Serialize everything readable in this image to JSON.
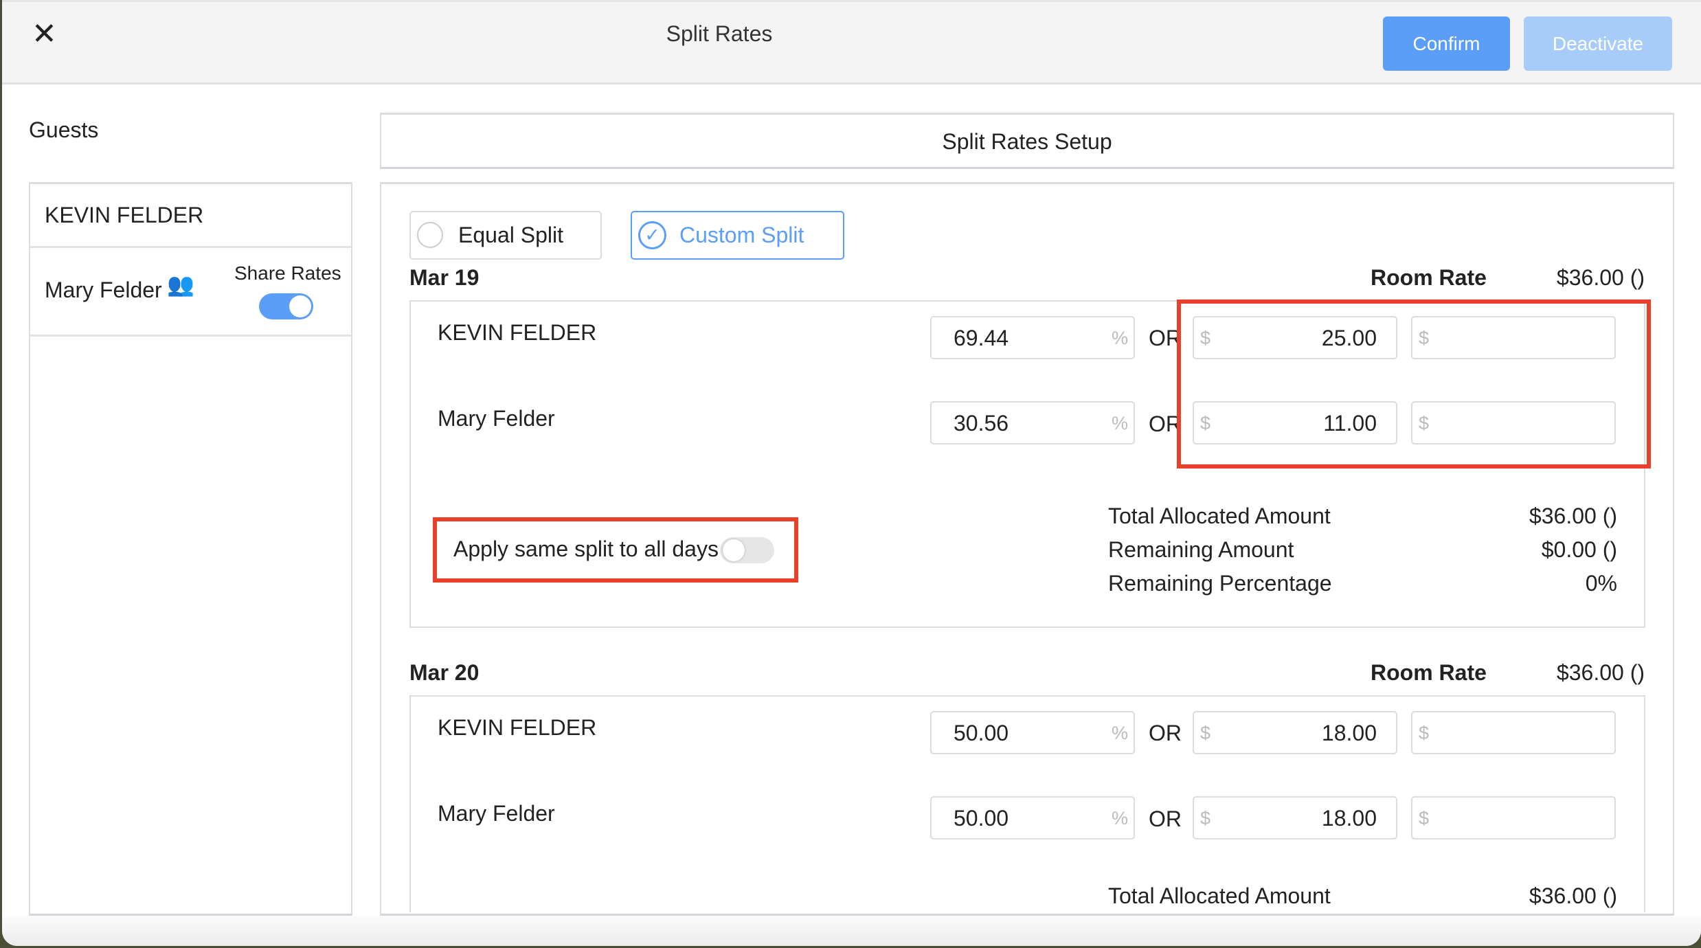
{
  "header": {
    "title": "Split Rates",
    "close_icon": "close-icon",
    "confirm_label": "Confirm",
    "deactivate_label": "Deactivate",
    "accent": "#5b9ef8",
    "disabled_accent": "#a8ccf9"
  },
  "guests": {
    "title": "Guests",
    "items": [
      {
        "name": "KEVIN FELDER"
      },
      {
        "name": "Mary Felder",
        "icon": "users-icon",
        "share_label": "Share Rates",
        "share_on": true
      }
    ]
  },
  "setup": {
    "title": "Split Rates Setup",
    "modes": [
      {
        "label": "Equal Split",
        "selected": false
      },
      {
        "label": "Custom Split",
        "selected": true
      }
    ],
    "room_rate_label": "Room Rate",
    "or_label": "OR",
    "pct_unit": "%",
    "currency": "$",
    "days": [
      {
        "date": "Mar 19",
        "room_rate": "$36.00 ()",
        "rows": [
          {
            "name": "KEVIN FELDER",
            "pct": "69.44",
            "amount": "25.00"
          },
          {
            "name": "Mary Felder",
            "pct": "30.56",
            "amount": "11.00"
          }
        ],
        "apply_label": "Apply same split to all days",
        "apply_on": false,
        "totals": [
          {
            "label": "Total Allocated Amount",
            "value": "$36.00 ()"
          },
          {
            "label": "Remaining Amount",
            "value": "$0.00 ()"
          },
          {
            "label": "Remaining Percentage",
            "value": "0%"
          }
        ]
      },
      {
        "date": "Mar 20",
        "room_rate": "$36.00 ()",
        "rows": [
          {
            "name": "KEVIN FELDER",
            "pct": "50.00",
            "amount": "18.00"
          },
          {
            "name": "Mary Felder",
            "pct": "50.00",
            "amount": "18.00"
          }
        ],
        "totals": [
          {
            "label": "Total Allocated Amount",
            "value": "$36.00 ()"
          }
        ]
      }
    ]
  }
}
